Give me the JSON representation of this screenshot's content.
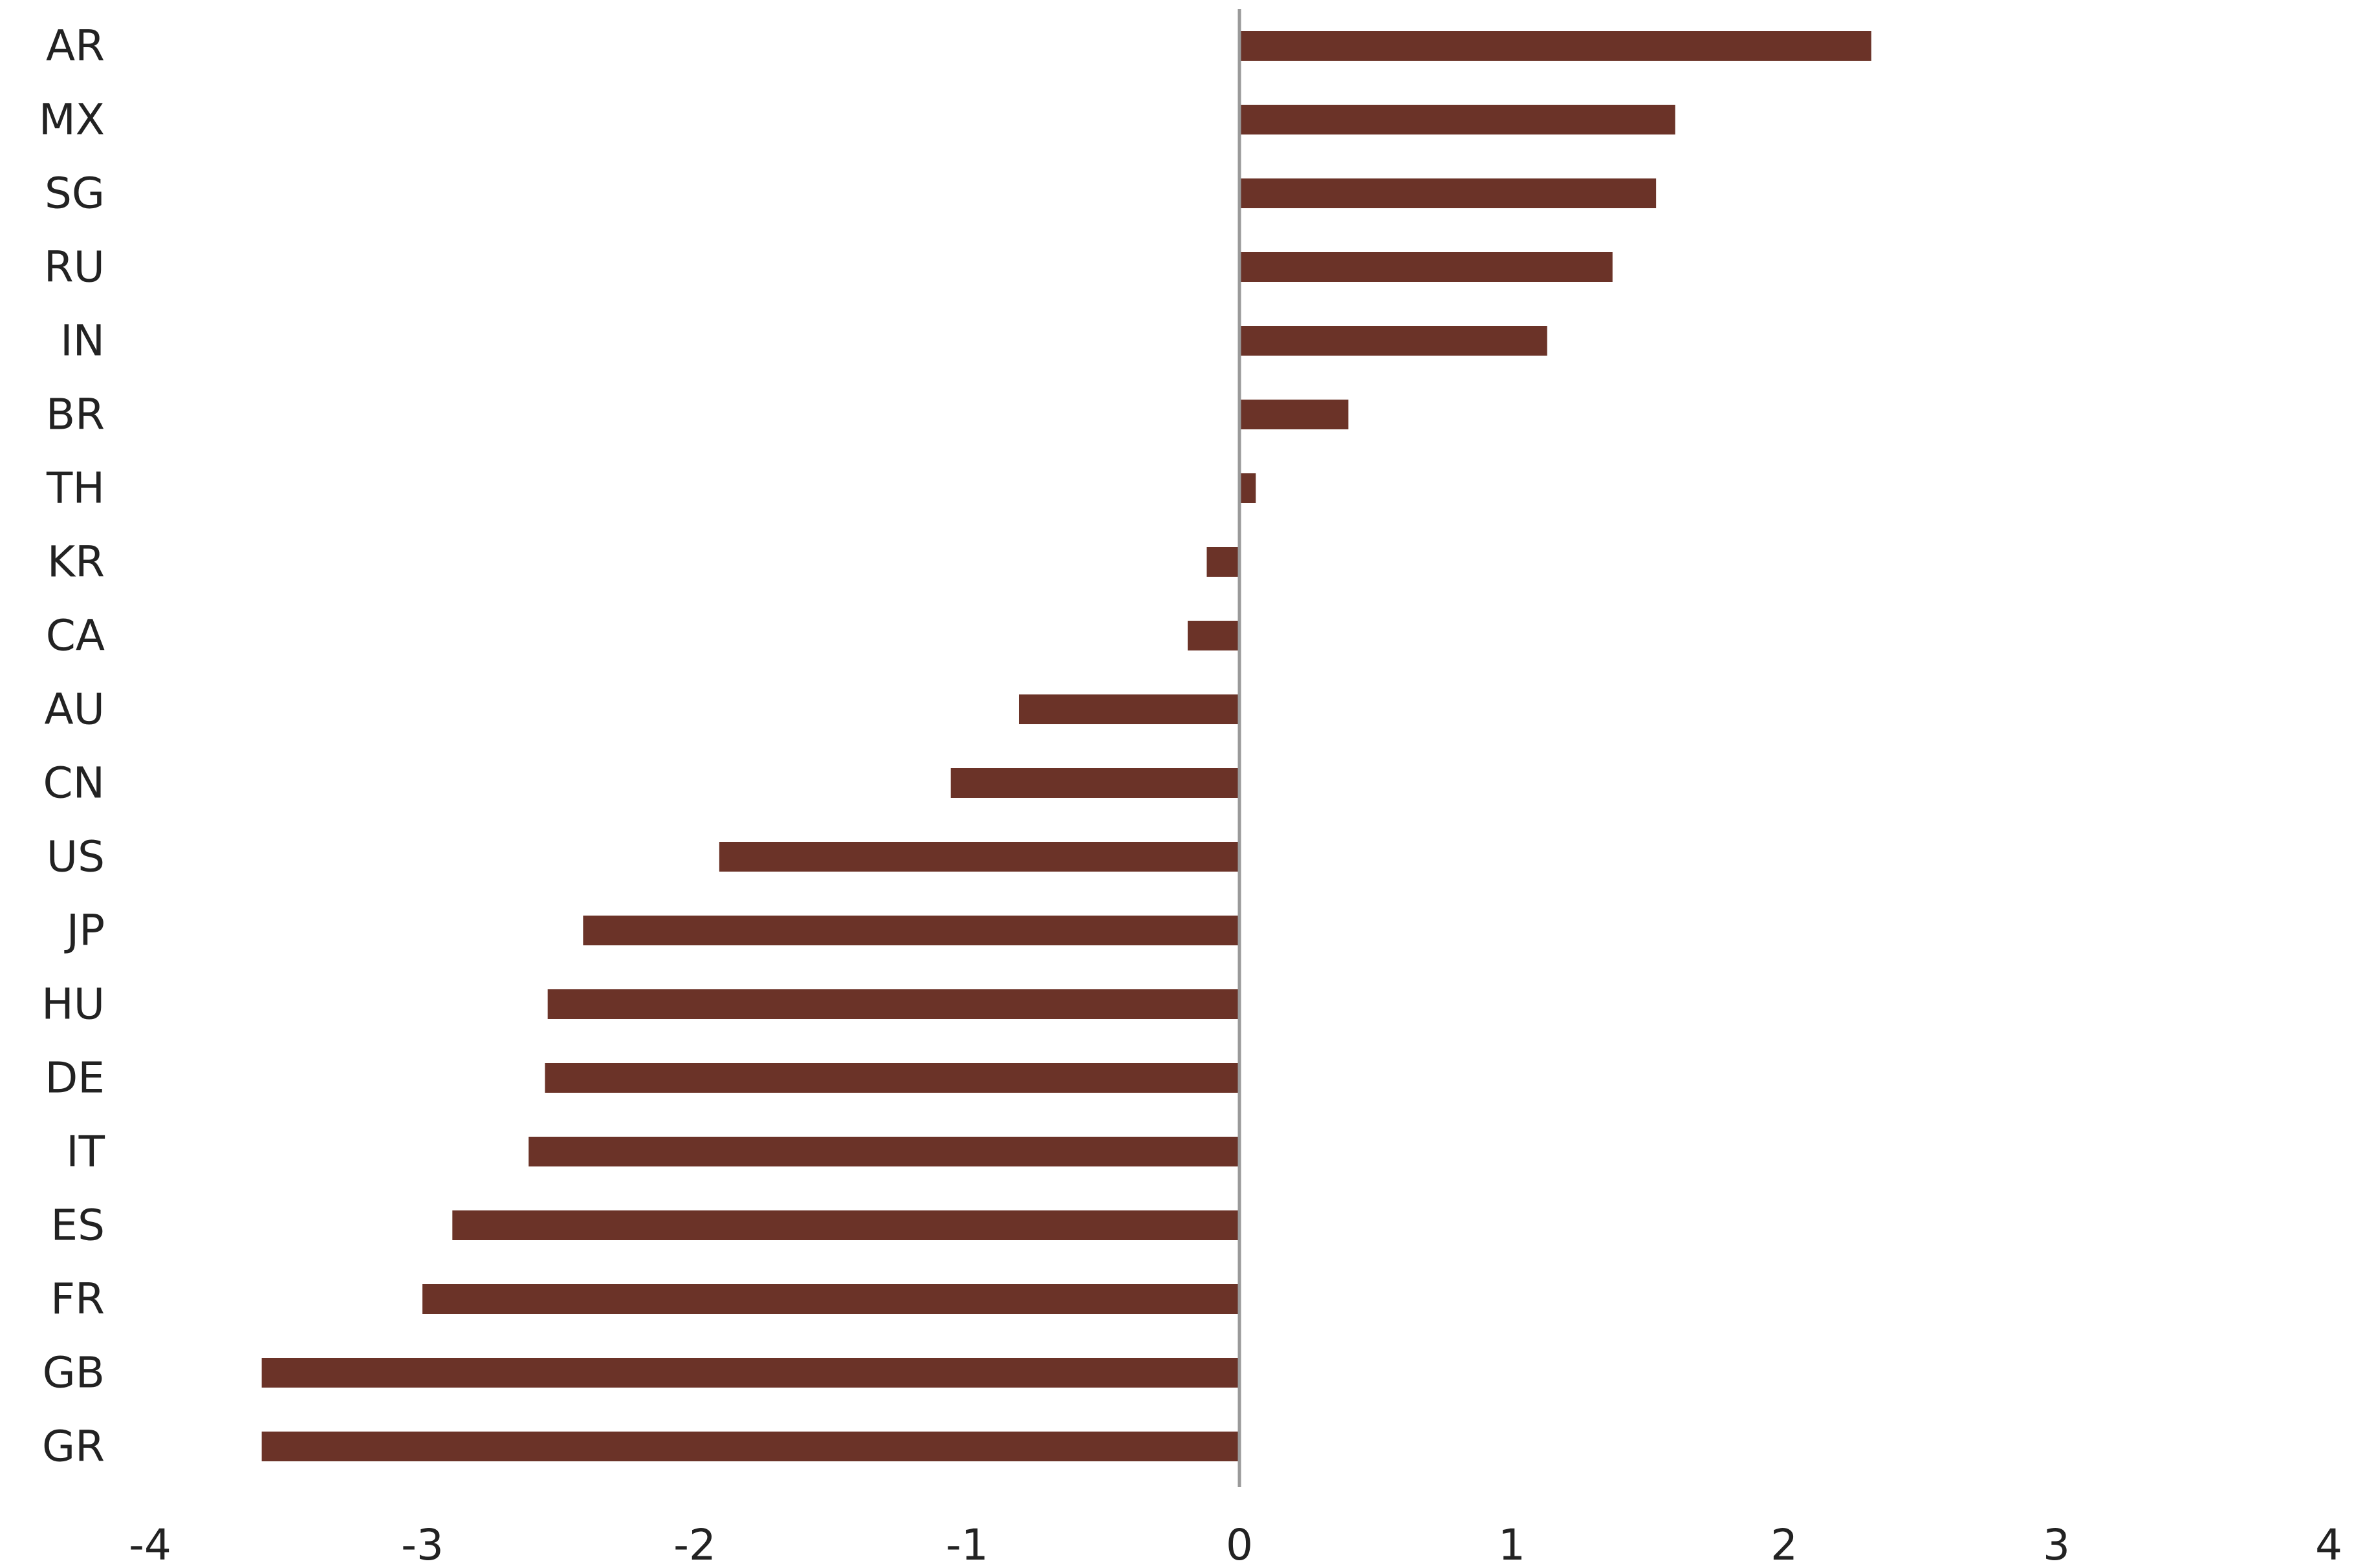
{
  "chart_data": {
    "type": "bar",
    "orientation": "horizontal",
    "title": "",
    "xlabel": "",
    "ylabel": "",
    "categories": [
      "AR",
      "MX",
      "SG",
      "RU",
      "IN",
      "BR",
      "TH",
      "KR",
      "CA",
      "AU",
      "CN",
      "US",
      "JP",
      "HU",
      "DE",
      "IT",
      "ES",
      "FR",
      "GB",
      "GR"
    ],
    "values": [
      2.32,
      1.6,
      1.53,
      1.37,
      1.13,
      0.4,
      0.06,
      -0.12,
      -0.19,
      -0.81,
      -1.06,
      -1.91,
      -2.41,
      -2.54,
      -2.55,
      -2.61,
      -2.89,
      -3.0,
      -3.59,
      -3.59
    ],
    "xlim": [
      -4,
      4
    ],
    "xticks": [
      -4,
      -3,
      -2,
      -1,
      0,
      1,
      2,
      3,
      4
    ],
    "xtick_labels": [
      "-4",
      "-3",
      "-2",
      "-1",
      "0",
      "1",
      "2",
      "3",
      "4"
    ],
    "grid": false,
    "legend": "none",
    "bar_color": "#6b3328",
    "zero_line_color": "#9a9a9a"
  }
}
